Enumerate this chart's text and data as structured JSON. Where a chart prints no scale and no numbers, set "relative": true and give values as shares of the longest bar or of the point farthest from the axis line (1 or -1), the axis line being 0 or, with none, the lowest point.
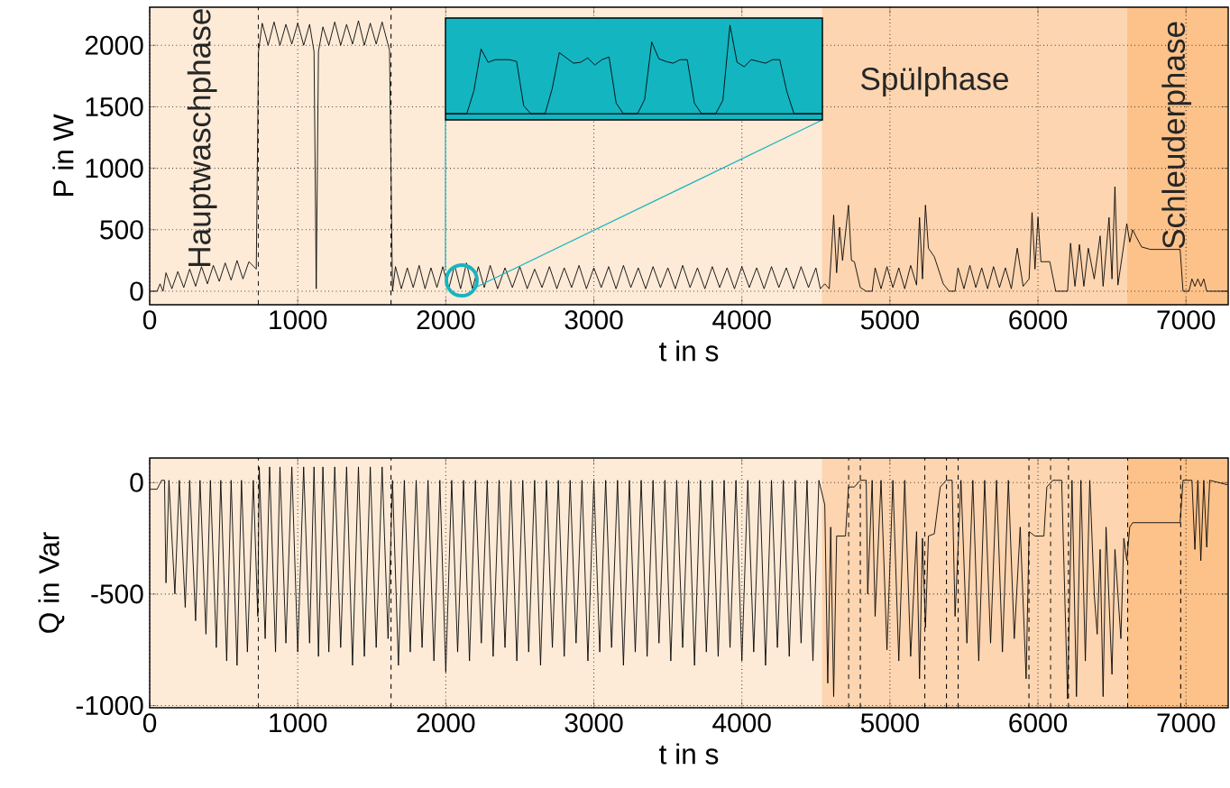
{
  "chart_data": [
    {
      "type": "line",
      "xlabel": "t in s",
      "ylabel": "P in W",
      "xlim": [
        0,
        7285
      ],
      "ylim": [
        -110,
        2310
      ],
      "xticks": [
        0,
        1000,
        2000,
        3000,
        4000,
        5000,
        6000,
        7000
      ],
      "yticks": [
        0,
        500,
        1000,
        1500,
        2000
      ],
      "grid": true,
      "series": [
        {
          "color": "#000000",
          "x": [
            0,
            50,
            70,
            90,
            110,
            150,
            190,
            230,
            270,
            310,
            350,
            390,
            430,
            470,
            510,
            550,
            590,
            630,
            670,
            720,
            735,
            760,
            800,
            840,
            880,
            920,
            960,
            1000,
            1040,
            1080,
            1110,
            1125,
            1140,
            1170,
            1210,
            1250,
            1290,
            1330,
            1370,
            1410,
            1450,
            1490,
            1530,
            1570,
            1620,
            1640,
            1660,
            1700,
            1740,
            1780,
            1820,
            1860,
            1900,
            1940,
            1980,
            2020,
            2060,
            2100,
            2140,
            2180,
            2220,
            2260,
            2300,
            2350,
            2400,
            2450,
            2500,
            2550,
            2600,
            2650,
            2700,
            2750,
            2800,
            2850,
            2900,
            2950,
            3000,
            3050,
            3100,
            3150,
            3200,
            3250,
            3300,
            3350,
            3400,
            3450,
            3500,
            3550,
            3600,
            3650,
            3700,
            3750,
            3800,
            3850,
            3900,
            3950,
            4000,
            4050,
            4100,
            4150,
            4200,
            4250,
            4300,
            4350,
            4400,
            4450,
            4500,
            4530,
            4560,
            4590,
            4620,
            4640,
            4660,
            4680,
            4720,
            4740,
            4760,
            4800,
            4840,
            4880,
            4900,
            4940,
            4980,
            5020,
            5060,
            5100,
            5140,
            5180,
            5200,
            5220,
            5240,
            5260,
            5300,
            5360,
            5400,
            5440,
            5460,
            5500,
            5540,
            5580,
            5620,
            5660,
            5700,
            5740,
            5780,
            5820,
            5860,
            5900,
            5940,
            5960,
            5980,
            6000,
            6020,
            6080,
            6120,
            6200,
            6220,
            6250,
            6280,
            6310,
            6340,
            6380,
            6420,
            6440,
            6480,
            6500,
            6520,
            6540,
            6580,
            6600,
            6620,
            6640,
            6660,
            6700,
            6760,
            6960,
            6980,
            7020,
            7040,
            7060,
            7080,
            7100,
            7120,
            7140,
            7280
          ],
          "values": [
            0,
            0,
            60,
            0,
            150,
            20,
            160,
            30,
            180,
            40,
            200,
            60,
            210,
            80,
            230,
            90,
            250,
            100,
            240,
            180,
            1950,
            2180,
            2000,
            2190,
            2000,
            2170,
            2010,
            2180,
            2000,
            2170,
            1950,
            20,
            1950,
            2150,
            2000,
            2190,
            2000,
            2170,
            2010,
            2200,
            2000,
            2180,
            2010,
            2190,
            1960,
            0,
            200,
            20,
            190,
            30,
            210,
            20,
            190,
            30,
            200,
            20,
            210,
            20,
            230,
            20,
            200,
            30,
            210,
            20,
            190,
            30,
            200,
            20,
            180,
            30,
            200,
            20,
            190,
            30,
            210,
            20,
            190,
            30,
            200,
            20,
            210,
            30,
            190,
            20,
            200,
            30,
            190,
            20,
            210,
            30,
            190,
            20,
            200,
            30,
            190,
            20,
            200,
            30,
            190,
            20,
            200,
            30,
            190,
            20,
            200,
            30,
            190,
            20,
            60,
            20,
            620,
            150,
            520,
            250,
            700,
            250,
            240,
            30,
            0,
            0,
            190,
            20,
            200,
            30,
            190,
            20,
            210,
            50,
            600,
            100,
            700,
            350,
            280,
            60,
            0,
            0,
            190,
            20,
            210,
            30,
            190,
            20,
            200,
            30,
            190,
            20,
            350,
            40,
            100,
            640,
            180,
            600,
            240,
            240,
            0,
            0,
            390,
            40,
            380,
            40,
            350,
            100,
            450,
            40,
            600,
            100,
            850,
            50,
            380,
            550,
            400,
            500,
            450,
            360,
            340,
            340,
            0,
            0,
            100,
            40,
            100,
            40,
            100,
            0,
            0
          ]
        }
      ],
      "bands": [
        {
          "axis": "x",
          "from": 0,
          "to": 4540,
          "label": "Hauptwaschphase",
          "color": "#fdebd7"
        },
        {
          "axis": "x",
          "from": 4540,
          "to": 6600,
          "label": "Spülphase",
          "color": "#fdd5b0"
        },
        {
          "axis": "x",
          "from": 6600,
          "to": 7285,
          "label": "Schleuderphase",
          "color": "#fdc28a"
        }
      ],
      "ref_lines": [
        {
          "axis": "x",
          "value": 733,
          "line_style": "dashed"
        },
        {
          "axis": "x",
          "value": 1630,
          "line_style": "dashed"
        }
      ]
    },
    {
      "type": "line",
      "xlabel": "t in s",
      "ylabel": "Q in Var",
      "xlim": [
        0,
        7285
      ],
      "ylim": [
        -1010,
        110
      ],
      "xticks": [
        0,
        1000,
        2000,
        3000,
        4000,
        5000,
        6000,
        7000
      ],
      "yticks": [
        -1000,
        -500,
        0
      ],
      "grid": true,
      "series": [
        {
          "color": "#000000",
          "x": [
            0,
            50,
            80,
            100,
            110,
            130,
            170,
            200,
            240,
            270,
            310,
            340,
            380,
            410,
            450,
            480,
            520,
            550,
            590,
            620,
            660,
            700,
            730,
            740,
            780,
            810,
            850,
            880,
            920,
            960,
            1000,
            1040,
            1080,
            1110,
            1140,
            1170,
            1210,
            1250,
            1290,
            1330,
            1370,
            1410,
            1450,
            1490,
            1530,
            1570,
            1610,
            1640,
            1680,
            1720,
            1760,
            1800,
            1840,
            1880,
            1920,
            1960,
            2000,
            2040,
            2080,
            2120,
            2160,
            2200,
            2240,
            2280,
            2320,
            2360,
            2400,
            2440,
            2480,
            2520,
            2560,
            2600,
            2640,
            2680,
            2720,
            2760,
            2800,
            2840,
            2880,
            2920,
            2960,
            3000,
            3040,
            3080,
            3120,
            3160,
            3200,
            3240,
            3280,
            3320,
            3360,
            3400,
            3440,
            3480,
            3520,
            3560,
            3600,
            3640,
            3680,
            3720,
            3760,
            3800,
            3840,
            3880,
            3920,
            3960,
            4000,
            4040,
            4080,
            4120,
            4160,
            4200,
            4240,
            4280,
            4320,
            4360,
            4400,
            4440,
            4480,
            4520,
            4560,
            4580,
            4600,
            4620,
            4640,
            4700,
            4720,
            4760,
            4800,
            4840,
            4850,
            4880,
            4900,
            4940,
            4980,
            5020,
            5060,
            5100,
            5140,
            5180,
            5200,
            5220,
            5240,
            5260,
            5300,
            5340,
            5380,
            5420,
            5440,
            5480,
            5520,
            5560,
            5600,
            5640,
            5680,
            5720,
            5760,
            5800,
            5840,
            5880,
            5920,
            5940,
            5980,
            6040,
            6060,
            6100,
            6160,
            6200,
            6230,
            6260,
            6290,
            6320,
            6350,
            6380,
            6400,
            6420,
            6440,
            6460,
            6500,
            6520,
            6560,
            6580,
            6600,
            6620,
            6640,
            6960,
            6980,
            7040,
            7060,
            7080,
            7100,
            7120,
            7140,
            7160,
            7280
          ],
          "values": [
            -30,
            -30,
            10,
            10,
            -450,
            10,
            -500,
            10,
            -560,
            10,
            -620,
            10,
            -680,
            10,
            -740,
            10,
            -800,
            10,
            -820,
            10,
            -760,
            10,
            -600,
            70,
            -700,
            70,
            -760,
            70,
            -720,
            70,
            -760,
            70,
            -720,
            70,
            -780,
            70,
            -760,
            70,
            -740,
            70,
            -820,
            70,
            -780,
            70,
            -740,
            70,
            -700,
            10,
            -820,
            10,
            -760,
            10,
            -740,
            10,
            -800,
            10,
            -850,
            10,
            -760,
            10,
            -800,
            10,
            -720,
            10,
            -780,
            10,
            -740,
            10,
            -800,
            10,
            -760,
            10,
            -820,
            10,
            -740,
            10,
            -780,
            10,
            -720,
            10,
            -800,
            10,
            -760,
            10,
            -740,
            10,
            -820,
            10,
            -760,
            10,
            -780,
            10,
            -720,
            10,
            -800,
            10,
            -740,
            10,
            -820,
            10,
            -760,
            10,
            -780,
            10,
            -740,
            10,
            -800,
            10,
            -760,
            10,
            -820,
            10,
            -740,
            10,
            -780,
            10,
            -720,
            10,
            -800,
            10,
            -100,
            -900,
            -200,
            -960,
            -240,
            -240,
            -20,
            -20,
            10,
            10,
            -500,
            10,
            -600,
            10,
            -750,
            10,
            -800,
            10,
            -780,
            -220,
            -880,
            -250,
            -650,
            -240,
            -230,
            -20,
            10,
            10,
            -600,
            10,
            -720,
            10,
            -800,
            10,
            -720,
            10,
            -760,
            10,
            -700,
            -200,
            -880,
            -220,
            -240,
            -240,
            -20,
            10,
            10,
            -970,
            10,
            -960,
            10,
            -800,
            10,
            -500,
            -680,
            -300,
            -960,
            -200,
            -860,
            -300,
            -700,
            -250,
            -350,
            -200,
            -180,
            -180,
            10,
            10,
            -300,
            10,
            -350,
            10,
            -290,
            10,
            -10
          ]
        }
      ],
      "bands": [
        {
          "axis": "x",
          "from": 0,
          "to": 4540,
          "color": "#fdebd7"
        },
        {
          "axis": "x",
          "from": 4540,
          "to": 6600,
          "color": "#fdd5b0"
        },
        {
          "axis": "x",
          "from": 6600,
          "to": 7285,
          "color": "#fdc28a"
        }
      ],
      "ref_lines": [
        {
          "axis": "x",
          "value": 733,
          "line_style": "dashed"
        },
        {
          "axis": "x",
          "value": 1630,
          "line_style": "dashed"
        },
        {
          "axis": "x",
          "value": 4721,
          "line_style": "dashed"
        },
        {
          "axis": "x",
          "value": 4800,
          "line_style": "dashed"
        },
        {
          "axis": "x",
          "value": 5236,
          "line_style": "dashed"
        },
        {
          "axis": "x",
          "value": 5382,
          "line_style": "dashed"
        },
        {
          "axis": "x",
          "value": 5461,
          "line_style": "dashed"
        },
        {
          "axis": "x",
          "value": 5939,
          "line_style": "dashed"
        },
        {
          "axis": "x",
          "value": 6085,
          "line_style": "dashed"
        },
        {
          "axis": "x",
          "value": 6206,
          "line_style": "dashed"
        },
        {
          "axis": "x",
          "value": 6606,
          "line_style": "dashed"
        },
        {
          "axis": "x",
          "value": 6964,
          "line_style": "dashed"
        }
      ]
    },
    {
      "type": "line",
      "relative": true,
      "categories": [
        null,
        null,
        null,
        null,
        null,
        null,
        null,
        null,
        null,
        null,
        null,
        null,
        null,
        null,
        null,
        null,
        null,
        null,
        null,
        null,
        null,
        null,
        null,
        null,
        null,
        null,
        null,
        null,
        null,
        null,
        null,
        null,
        null,
        null,
        null,
        null,
        null,
        null,
        null,
        null,
        null,
        null,
        null,
        null,
        null,
        null,
        null,
        null,
        null,
        null,
        null,
        null,
        null,
        null
      ],
      "series": [
        {
          "color": "#000000",
          "values": [
            0,
            0,
            0,
            0,
            0.26,
            0.73,
            0.58,
            0.61,
            0.61,
            0.61,
            0.59,
            0.09,
            0,
            0,
            0,
            0.28,
            0.69,
            0.63,
            0.57,
            0.58,
            0.63,
            0.55,
            0.61,
            0.64,
            0.12,
            0,
            0,
            0,
            0.16,
            0.81,
            0.62,
            0.59,
            0.57,
            0.61,
            0.61,
            0.12,
            0,
            0,
            0,
            0.15,
            1,
            0.58,
            0.53,
            0.61,
            0.59,
            0.57,
            0.61,
            0.61,
            0.25,
            0,
            0,
            0,
            0,
            0
          ]
        }
      ]
    }
  ]
}
